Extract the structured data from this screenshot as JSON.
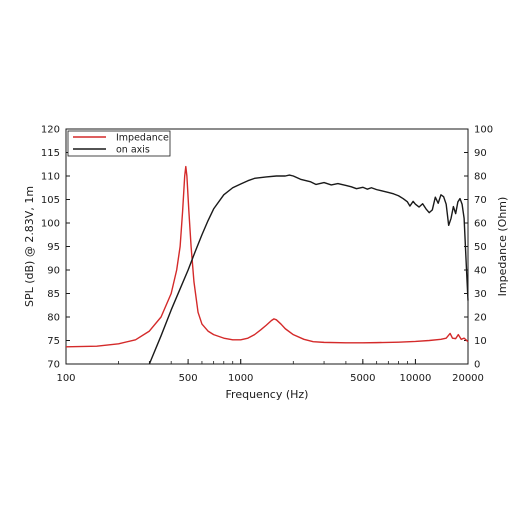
{
  "chart_data": {
    "type": "line",
    "xlabel": "Frequency (Hz)",
    "ylabel_left": "SPL (dB) @ 2.83V, 1m",
    "ylabel_right": "Impedance (Ohm)",
    "x_scale": "log",
    "xlim": [
      100,
      20000
    ],
    "ylim_left": [
      70,
      120
    ],
    "ylim_right": [
      0,
      100
    ],
    "x_ticks": [
      100,
      500,
      1000,
      5000,
      10000,
      20000
    ],
    "x_tick_labels": [
      "100",
      "500",
      "1000",
      "5000",
      "10000",
      "20000"
    ],
    "y_left_ticks": [
      70,
      75,
      80,
      85,
      90,
      95,
      100,
      105,
      110,
      115,
      120
    ],
    "y_left_tick_labels": [
      "70",
      "75",
      "80",
      "85",
      "90",
      "95",
      "100",
      "105",
      "110",
      "115",
      "120"
    ],
    "y_right_ticks": [
      0,
      10,
      20,
      30,
      40,
      50,
      60,
      70,
      80,
      90,
      100
    ],
    "y_right_tick_labels": [
      "0",
      "10",
      "20",
      "30",
      "40",
      "50",
      "60",
      "70",
      "80",
      "90",
      "100"
    ],
    "grid": false,
    "legend_position": "top-left",
    "series": [
      {
        "name": "Impedance",
        "color": "#d42a2a",
        "axis": "right",
        "points": [
          [
            100,
            7.3
          ],
          [
            150,
            7.6
          ],
          [
            200,
            8.6
          ],
          [
            250,
            10.3
          ],
          [
            300,
            14
          ],
          [
            350,
            20
          ],
          [
            400,
            30
          ],
          [
            430,
            40
          ],
          [
            450,
            50
          ],
          [
            465,
            65
          ],
          [
            478,
            80
          ],
          [
            485,
            84
          ],
          [
            492,
            80
          ],
          [
            505,
            65
          ],
          [
            520,
            50
          ],
          [
            540,
            35
          ],
          [
            570,
            22
          ],
          [
            600,
            17
          ],
          [
            650,
            14
          ],
          [
            700,
            12.5
          ],
          [
            800,
            11
          ],
          [
            900,
            10.3
          ],
          [
            1000,
            10.3
          ],
          [
            1100,
            11
          ],
          [
            1200,
            12.5
          ],
          [
            1300,
            14.5
          ],
          [
            1400,
            16.5
          ],
          [
            1500,
            18.5
          ],
          [
            1550,
            19.2
          ],
          [
            1600,
            18.8
          ],
          [
            1700,
            17
          ],
          [
            1800,
            15
          ],
          [
            2000,
            12.5
          ],
          [
            2300,
            10.5
          ],
          [
            2600,
            9.5
          ],
          [
            3000,
            9.2
          ],
          [
            4000,
            9
          ],
          [
            5000,
            9
          ],
          [
            6000,
            9.1
          ],
          [
            8000,
            9.3
          ],
          [
            10000,
            9.6
          ],
          [
            12000,
            10
          ],
          [
            14000,
            10.5
          ],
          [
            15000,
            11
          ],
          [
            15800,
            13
          ],
          [
            16300,
            11
          ],
          [
            17000,
            10.8
          ],
          [
            17600,
            12.5
          ],
          [
            18300,
            10.5
          ],
          [
            19000,
            11
          ],
          [
            20000,
            9.5
          ]
        ]
      },
      {
        "name": "on axis",
        "color": "#1a1a1a",
        "axis": "left",
        "points": [
          [
            300,
            70
          ],
          [
            350,
            76
          ],
          [
            400,
            81.5
          ],
          [
            450,
            86
          ],
          [
            500,
            90
          ],
          [
            550,
            94
          ],
          [
            600,
            97.5
          ],
          [
            650,
            100.5
          ],
          [
            700,
            103
          ],
          [
            800,
            106
          ],
          [
            900,
            107.5
          ],
          [
            1000,
            108.3
          ],
          [
            1100,
            109
          ],
          [
            1200,
            109.5
          ],
          [
            1400,
            109.8
          ],
          [
            1600,
            110
          ],
          [
            1800,
            110
          ],
          [
            1900,
            110.2
          ],
          [
            2000,
            110
          ],
          [
            2200,
            109.3
          ],
          [
            2500,
            108.8
          ],
          [
            2700,
            108.2
          ],
          [
            3000,
            108.6
          ],
          [
            3300,
            108.1
          ],
          [
            3600,
            108.4
          ],
          [
            4000,
            108
          ],
          [
            4300,
            107.7
          ],
          [
            4600,
            107.3
          ],
          [
            5000,
            107.6
          ],
          [
            5300,
            107.2
          ],
          [
            5600,
            107.5
          ],
          [
            6000,
            107.1
          ],
          [
            6500,
            106.8
          ],
          [
            7000,
            106.5
          ],
          [
            7500,
            106.2
          ],
          [
            8000,
            105.8
          ],
          [
            8500,
            105.2
          ],
          [
            9000,
            104.5
          ],
          [
            9300,
            103.6
          ],
          [
            9700,
            104.6
          ],
          [
            10000,
            104
          ],
          [
            10500,
            103.4
          ],
          [
            11000,
            104.1
          ],
          [
            11500,
            103
          ],
          [
            12000,
            102.2
          ],
          [
            12500,
            102.8
          ],
          [
            13000,
            105.5
          ],
          [
            13500,
            104.2
          ],
          [
            14000,
            106
          ],
          [
            14500,
            105.6
          ],
          [
            15000,
            104
          ],
          [
            15500,
            99.5
          ],
          [
            16000,
            101
          ],
          [
            16500,
            103.5
          ],
          [
            17000,
            102
          ],
          [
            17500,
            104.5
          ],
          [
            18000,
            105.2
          ],
          [
            18500,
            104
          ],
          [
            19000,
            101
          ],
          [
            19500,
            92
          ],
          [
            20000,
            83.5
          ]
        ]
      }
    ]
  }
}
